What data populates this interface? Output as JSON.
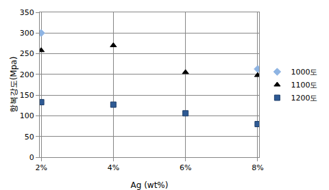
{
  "chart_data": {
    "type": "scatter",
    "x_label": "Ag (wt%)",
    "y_label": "항복강도(Mpa)",
    "categories": [
      "2%",
      "4%",
      "6%",
      "8%"
    ],
    "series": [
      {
        "name": "1000도",
        "color": "#8eb4e3",
        "marker": "diamond",
        "values": [
          300,
          null,
          null,
          213
        ]
      },
      {
        "name": "1100도",
        "color": "#000000",
        "marker": "triangle-up",
        "values": [
          258,
          270,
          205,
          198
        ]
      },
      {
        "name": "1200도",
        "color": "#2e5a94",
        "marker": "square",
        "values": [
          133,
          127,
          106,
          80
        ]
      }
    ],
    "ylim": [
      0,
      350
    ],
    "yticks": [
      0,
      50,
      100,
      150,
      200,
      250,
      300,
      350
    ],
    "grid": true,
    "legend": "right"
  }
}
